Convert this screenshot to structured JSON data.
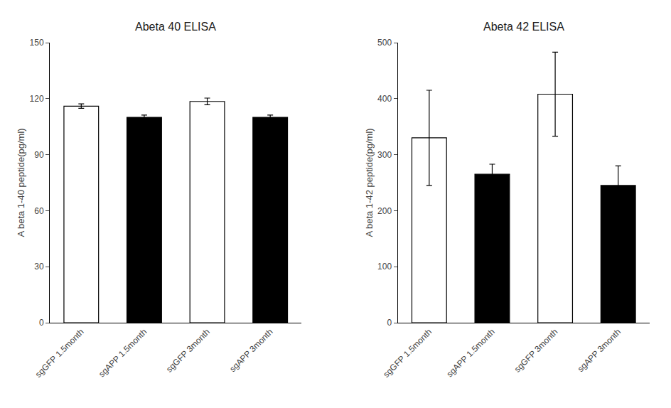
{
  "chart_data": [
    {
      "type": "bar",
      "title": "Abeta 40 ELISA",
      "categories": [
        "sgGFP 1.5month",
        "sgAPP 1.5month",
        "sgGFP 3month",
        "sgAPP 3month"
      ],
      "values": [
        116,
        110,
        118.5,
        110
      ],
      "errors": [
        1.2,
        1.2,
        1.8,
        1.2
      ],
      "colors": [
        "white",
        "black",
        "white",
        "black"
      ],
      "ylabel": "A beta 1-40 peptide(pg/ml)",
      "ylim": [
        0,
        150
      ],
      "yticks": [
        0,
        30,
        60,
        90,
        120,
        150
      ],
      "grid": false
    },
    {
      "type": "bar",
      "title": "Abeta 42 ELISA",
      "categories": [
        "sgGFP 1.5month",
        "sgAPP 1.5month",
        "sgGFP 3month",
        "sgAPP 3month"
      ],
      "values": [
        330,
        265,
        408,
        245
      ],
      "errors": [
        85,
        18,
        75,
        35
      ],
      "colors": [
        "white",
        "black",
        "white",
        "black"
      ],
      "ylabel": "A beta 1-42 peptide(pg/ml)",
      "ylim": [
        0,
        500
      ],
      "yticks": [
        0,
        100,
        200,
        300,
        400,
        500
      ],
      "grid": false
    }
  ]
}
